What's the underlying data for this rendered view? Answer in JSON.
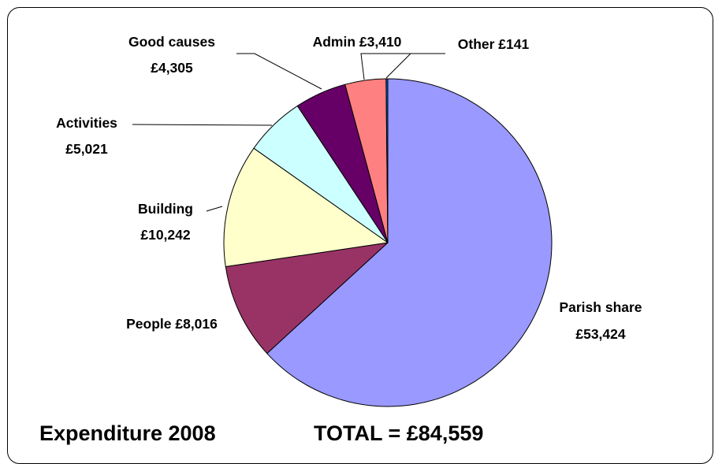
{
  "chart_data": {
    "type": "pie",
    "slices": [
      {
        "label": "Parish share",
        "value_label": "£53,424",
        "value": 53424,
        "color": "#9999ff"
      },
      {
        "label": "People",
        "value_label": "£8,016",
        "value": 8016,
        "color": "#993366"
      },
      {
        "label": "Building",
        "value_label": "£10,242",
        "value": 10242,
        "color": "#ffffcc"
      },
      {
        "label": "Activities",
        "value_label": "£5,021",
        "value": 5021,
        "color": "#ccffff"
      },
      {
        "label": "Good causes",
        "value_label": "£4,305",
        "value": 4305,
        "color": "#660066"
      },
      {
        "label": "Admin",
        "value_label": "£3,410",
        "value": 3410,
        "color": "#ff8080"
      },
      {
        "label": "Other",
        "value_label": "£141",
        "value": 141,
        "color": "#0066cc"
      }
    ],
    "labels": {
      "parish_share_1": "Parish share",
      "parish_share_2": "£53,424",
      "people": "People £8,016",
      "building_1": "Building",
      "building_2": "£10,242",
      "activities_1": "Activities",
      "activities_2": "£5,021",
      "good_causes_1": "Good causes",
      "good_causes_2": "£4,305",
      "admin": "Admin £3,410",
      "other": "Other £141"
    }
  },
  "footer": {
    "title": "Expenditure 2008",
    "total": "TOTAL = £84,559"
  }
}
